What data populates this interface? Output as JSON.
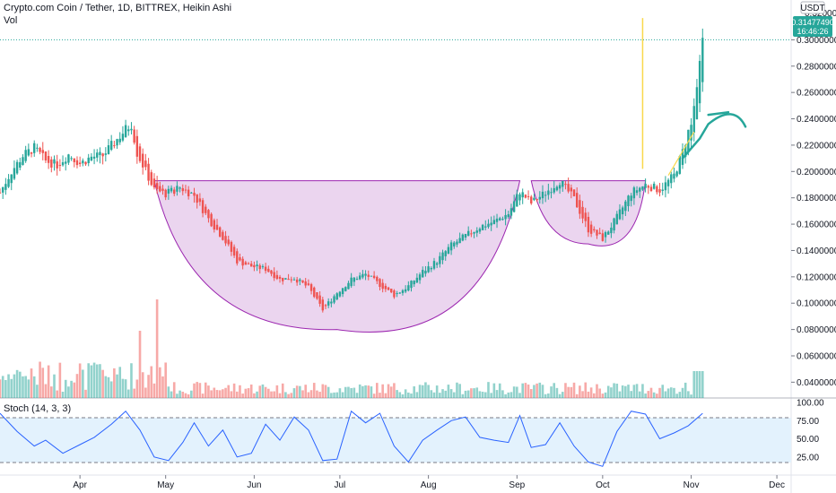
{
  "header": {
    "title": "Crypto.com Coin / Tether, 1D, BITTREX, Heikin Ashi",
    "vol_label": "Vol"
  },
  "price_axis": {
    "currency": "USDT",
    "top_label": "0.32000000",
    "current_price": "0.31477490",
    "countdown": "16:46:26",
    "ticks": [
      "0.30000000",
      "0.28000000",
      "0.26000000",
      "0.24000000",
      "0.22000000",
      "0.20000000",
      "0.18000000",
      "0.16000000",
      "0.14000000",
      "0.12000000",
      "0.10000000",
      "0.08000000",
      "0.06000000",
      "0.04000000"
    ]
  },
  "stoch": {
    "label": "Stoch (14, 3, 3)",
    "ticks": [
      "100.00",
      "75.00",
      "50.00",
      "25.00"
    ],
    "upper_band": 80,
    "lower_band": 20
  },
  "time_axis": {
    "months": [
      "Apr",
      "May",
      "Jun",
      "Jul",
      "Aug",
      "Sep",
      "Oct",
      "Nov",
      "Dec"
    ]
  },
  "colors": {
    "up": "#26a69a",
    "down": "#ef5350",
    "cup_fill": "#e1bee7",
    "cup_stroke": "#9c27b0",
    "annotation": "#26a69a",
    "vertical_line": "#f9d84a",
    "stoch_line": "#2962ff",
    "stoch_band": "#e3f2fd"
  },
  "chart_data": {
    "type": "candlestick",
    "title": "Crypto.com Coin / Tether, 1D, BITTREX, Heikin Ashi",
    "y_range": [
      0.028,
      0.32
    ],
    "y_scale": "linear",
    "x_range": [
      "2020-03-04",
      "2020-12-06"
    ],
    "series": [
      {
        "name": "Crypto.com Coin / Tether",
        "kind": "heikin-ashi",
        "close_by_date": [
          [
            "2020-03-04",
            0.184
          ],
          [
            "2020-03-08",
            0.2
          ],
          [
            "2020-03-12",
            0.212
          ],
          [
            "2020-03-16",
            0.218
          ],
          [
            "2020-03-20",
            0.208
          ],
          [
            "2020-03-24",
            0.205
          ],
          [
            "2020-03-28",
            0.213
          ],
          [
            "2020-04-01",
            0.206
          ],
          [
            "2020-04-05",
            0.211
          ],
          [
            "2020-04-09",
            0.212
          ],
          [
            "2020-04-13",
            0.222
          ],
          [
            "2020-04-17",
            0.232
          ],
          [
            "2020-04-19",
            0.236
          ],
          [
            "2020-04-21",
            0.214
          ],
          [
            "2020-04-23",
            0.205
          ],
          [
            "2020-04-27",
            0.186
          ],
          [
            "2020-05-01",
            0.183
          ],
          [
            "2020-05-06",
            0.188
          ],
          [
            "2020-05-11",
            0.182
          ],
          [
            "2020-05-16",
            0.164
          ],
          [
            "2020-05-21",
            0.15
          ],
          [
            "2020-05-26",
            0.132
          ],
          [
            "2020-05-31",
            0.128
          ],
          [
            "2020-06-05",
            0.126
          ],
          [
            "2020-06-10",
            0.118
          ],
          [
            "2020-06-15",
            0.119
          ],
          [
            "2020-06-20",
            0.112
          ],
          [
            "2020-06-25",
            0.095
          ],
          [
            "2020-06-30",
            0.108
          ],
          [
            "2020-07-05",
            0.118
          ],
          [
            "2020-07-10",
            0.122
          ],
          [
            "2020-07-15",
            0.114
          ],
          [
            "2020-07-20",
            0.106
          ],
          [
            "2020-07-25",
            0.113
          ],
          [
            "2020-07-30",
            0.124
          ],
          [
            "2020-08-04",
            0.132
          ],
          [
            "2020-08-09",
            0.144
          ],
          [
            "2020-08-14",
            0.151
          ],
          [
            "2020-08-19",
            0.158
          ],
          [
            "2020-08-24",
            0.162
          ],
          [
            "2020-08-29",
            0.168
          ],
          [
            "2020-09-02",
            0.185
          ],
          [
            "2020-09-06",
            0.176
          ],
          [
            "2020-09-11",
            0.184
          ],
          [
            "2020-09-16",
            0.193
          ],
          [
            "2020-09-21",
            0.179
          ],
          [
            "2020-09-26",
            0.156
          ],
          [
            "2020-10-01",
            0.149
          ],
          [
            "2020-10-06",
            0.165
          ],
          [
            "2020-10-11",
            0.184
          ],
          [
            "2020-10-16",
            0.19
          ],
          [
            "2020-10-21",
            0.186
          ],
          [
            "2020-10-26",
            0.197
          ],
          [
            "2020-10-29",
            0.215
          ],
          [
            "2020-11-01",
            0.238
          ],
          [
            "2020-11-03",
            0.262
          ],
          [
            "2020-11-05",
            0.3
          ]
        ]
      }
    ],
    "volume": {
      "label": "Vol",
      "max_bar_dates": [
        "2020-04-22",
        "2020-04-28"
      ]
    },
    "annotations": [
      {
        "type": "cup-and-handle",
        "cup_rim": 0.193,
        "cup_bottom": 0.08,
        "cup_start": "2020-04-27",
        "cup_end": "2020-09-02",
        "handle_start": "2020-09-06",
        "handle_end": "2020-10-16",
        "handle_bottom": 0.145
      },
      {
        "type": "vertical-line",
        "date": "2020-10-15",
        "from": 0.202,
        "to": 0.3165
      },
      {
        "type": "drawn-curve",
        "note": "projected path"
      }
    ],
    "stoch_series": {
      "name": "Stoch (14, 3, 3)",
      "y_range": [
        0,
        100
      ],
      "k_by_date": [
        [
          "2020-03-04",
          85
        ],
        [
          "2020-03-10",
          60
        ],
        [
          "2020-03-16",
          40
        ],
        [
          "2020-03-20",
          48
        ],
        [
          "2020-03-26",
          30
        ],
        [
          "2020-04-01",
          42
        ],
        [
          "2020-04-06",
          52
        ],
        [
          "2020-04-12",
          70
        ],
        [
          "2020-04-17",
          88
        ],
        [
          "2020-04-22",
          62
        ],
        [
          "2020-04-27",
          25
        ],
        [
          "2020-05-02",
          20
        ],
        [
          "2020-05-07",
          45
        ],
        [
          "2020-05-11",
          72
        ],
        [
          "2020-05-16",
          40
        ],
        [
          "2020-05-21",
          62
        ],
        [
          "2020-05-26",
          25
        ],
        [
          "2020-05-31",
          30
        ],
        [
          "2020-06-05",
          70
        ],
        [
          "2020-06-10",
          48
        ],
        [
          "2020-06-15",
          80
        ],
        [
          "2020-06-20",
          62
        ],
        [
          "2020-06-25",
          20
        ],
        [
          "2020-06-30",
          22
        ],
        [
          "2020-07-05",
          88
        ],
        [
          "2020-07-10",
          72
        ],
        [
          "2020-07-15",
          85
        ],
        [
          "2020-07-20",
          40
        ],
        [
          "2020-07-25",
          18
        ],
        [
          "2020-07-30",
          48
        ],
        [
          "2020-08-04",
          62
        ],
        [
          "2020-08-09",
          75
        ],
        [
          "2020-08-14",
          80
        ],
        [
          "2020-08-19",
          52
        ],
        [
          "2020-08-24",
          48
        ],
        [
          "2020-08-29",
          45
        ],
        [
          "2020-09-02",
          82
        ],
        [
          "2020-09-06",
          38
        ],
        [
          "2020-09-11",
          42
        ],
        [
          "2020-09-16",
          72
        ],
        [
          "2020-09-21",
          40
        ],
        [
          "2020-09-26",
          18
        ],
        [
          "2020-10-01",
          12
        ],
        [
          "2020-10-06",
          60
        ],
        [
          "2020-10-11",
          88
        ],
        [
          "2020-10-16",
          84
        ],
        [
          "2020-10-21",
          50
        ],
        [
          "2020-10-26",
          58
        ],
        [
          "2020-10-31",
          68
        ],
        [
          "2020-11-05",
          85
        ]
      ]
    }
  }
}
